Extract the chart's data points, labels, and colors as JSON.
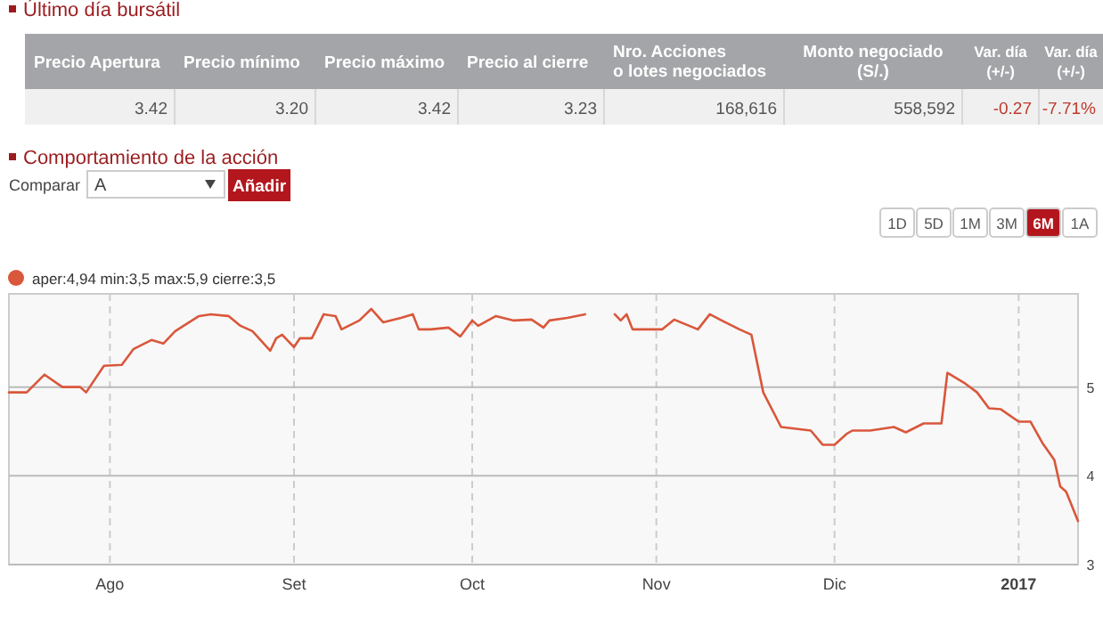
{
  "chart_data": [
    {
      "type": "other",
      "title": "Último día bursátil",
      "categories": [
        "Precio Apertura",
        "Precio mínimo",
        "Precio máximo",
        "Precio al cierre",
        "Nro. Acciones\no lotes negociados",
        "Monto negociado\n(S/.)",
        "Var. día\n(+/-)",
        "Var. día\n(+/-)"
      ],
      "annotations": [
        "3.42",
        "3.20",
        "3.42",
        "3.23",
        "168,616",
        "558,592",
        "-0.27",
        "-7.71%"
      ]
    },
    {
      "type": "line",
      "title": "Comportamiento de la acción",
      "annotations": [
        "Comparar",
        "A",
        "Añadir",
        "1D",
        "5D",
        "1M",
        "3M",
        "6M",
        "1A",
        "aper:4,94 min:3,5 max:5,9 cierre:3,5"
      ],
      "x": [
        "2016-07-15",
        "2016-07-18",
        "2016-07-21",
        "2016-07-24",
        "2016-07-27",
        "2016-07-28",
        "2016-07-31",
        "2016-08-03",
        "2016-08-05",
        "2016-08-08",
        "2016-08-10",
        "2016-08-12",
        "2016-08-16",
        "2016-08-18",
        "2016-08-21",
        "2016-08-23",
        "2016-08-25",
        "2016-08-28",
        "2016-08-29",
        "2016-08-30",
        "2016-09-01",
        "2016-09-02",
        "2016-09-04",
        "2016-09-06",
        "2016-09-08",
        "2016-09-09",
        "2016-09-12",
        "2016-09-14",
        "2016-09-16",
        "2016-09-19",
        "2016-09-21",
        "2016-09-22",
        "2016-09-24",
        "2016-09-27",
        "2016-09-29",
        "2016-10-01",
        "2016-10-02",
        "2016-10-05",
        "2016-10-08",
        "2016-10-11",
        "2016-10-13",
        "2016-10-14",
        "2016-10-17",
        "2016-10-20",
        "2016-10-22",
        "2016-10-25",
        "2016-10-26",
        "2016-10-27",
        "2016-10-28",
        "2016-11-02",
        "2016-11-04",
        "2016-11-08",
        "2016-11-10",
        "2016-11-12",
        "2016-11-15",
        "2016-11-17",
        "2016-11-19",
        "2016-11-22",
        "2016-11-27",
        "2016-11-29",
        "2016-12-01",
        "2016-12-03",
        "2016-12-04",
        "2016-12-07",
        "2016-12-09",
        "2016-12-11",
        "2016-12-13",
        "2016-12-16",
        "2016-12-19",
        "2016-12-20",
        "2016-12-23",
        "2016-12-25",
        "2016-12-27",
        "2016-12-29",
        "2017-01-01",
        "2017-01-03",
        "2017-01-05",
        "2017-01-07",
        "2017-01-08",
        "2017-01-09",
        "2017-01-11"
      ],
      "series": [
        {
          "color": "#d9573b",
          "values": [
            4.94,
            4.94,
            5.14,
            5.0,
            5.0,
            4.94,
            5.24,
            5.25,
            5.43,
            5.53,
            5.49,
            5.63,
            5.8,
            5.82,
            5.8,
            5.69,
            5.63,
            5.41,
            5.55,
            5.59,
            5.45,
            5.55,
            5.55,
            5.82,
            5.8,
            5.65,
            5.75,
            5.88,
            5.73,
            5.78,
            5.82,
            5.65,
            5.65,
            5.67,
            5.57,
            5.75,
            5.69,
            5.8,
            5.75,
            5.76,
            5.67,
            5.75,
            5.78,
            5.82,
            null,
            5.82,
            5.75,
            5.82,
            5.65,
            5.65,
            5.76,
            5.65,
            5.82,
            5.75,
            5.65,
            5.59,
            4.94,
            4.55,
            4.51,
            4.35,
            4.35,
            4.47,
            4.51,
            4.51,
            4.53,
            4.55,
            4.49,
            4.59,
            4.59,
            5.16,
            5.04,
            4.94,
            4.76,
            4.75,
            4.61,
            4.61,
            4.37,
            4.18,
            3.88,
            3.82,
            3.49
          ]
        }
      ],
      "xlim": [
        "2016-07-15",
        "2017-01-11"
      ],
      "xticks": [
        {
          "value": "2016-08-01",
          "label": "Ago"
        },
        {
          "value": "2016-09-01",
          "label": "Set"
        },
        {
          "value": "2016-10-01",
          "label": "Oct"
        },
        {
          "value": "2016-11-01",
          "label": "Nov"
        },
        {
          "value": "2016-12-01",
          "label": "Dic"
        },
        {
          "value": "2017-01-01",
          "label": "2017"
        }
      ],
      "ylim": [
        3,
        6.05
      ],
      "yticks": [
        3,
        4,
        5
      ],
      "grid": true
    }
  ]
}
